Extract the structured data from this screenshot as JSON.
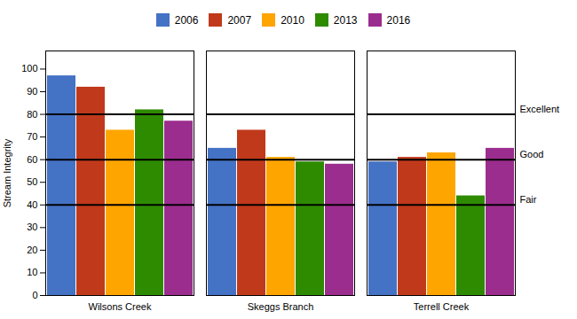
{
  "chart_data": {
    "type": "bar",
    "categories": [
      "Wilsons Creek",
      "Skeggs Branch",
      "Terrell Creek"
    ],
    "series": [
      {
        "name": "2006",
        "color": "#4472C4",
        "values": [
          97,
          65,
          59
        ]
      },
      {
        "name": "2007",
        "color": "#C0391B",
        "values": [
          92,
          73,
          61
        ]
      },
      {
        "name": "2010",
        "color": "#FFA500",
        "values": [
          73,
          61,
          63
        ]
      },
      {
        "name": "2013",
        "color": "#2E8B00",
        "values": [
          82,
          59,
          44
        ]
      },
      {
        "name": "2016",
        "color": "#9B2D8E",
        "values": [
          77,
          58,
          65
        ]
      }
    ],
    "hlines": [
      {
        "value": 80,
        "label": "Excellent"
      },
      {
        "value": 60,
        "label": "Good"
      },
      {
        "value": 40,
        "label": "Fair"
      }
    ],
    "ylabel": "Stream Integrity",
    "ylim": [
      0,
      108
    ],
    "yticks": [
      0,
      10,
      20,
      30,
      40,
      50,
      60,
      70,
      80,
      90,
      100
    ],
    "grid": false,
    "legend": "top"
  }
}
